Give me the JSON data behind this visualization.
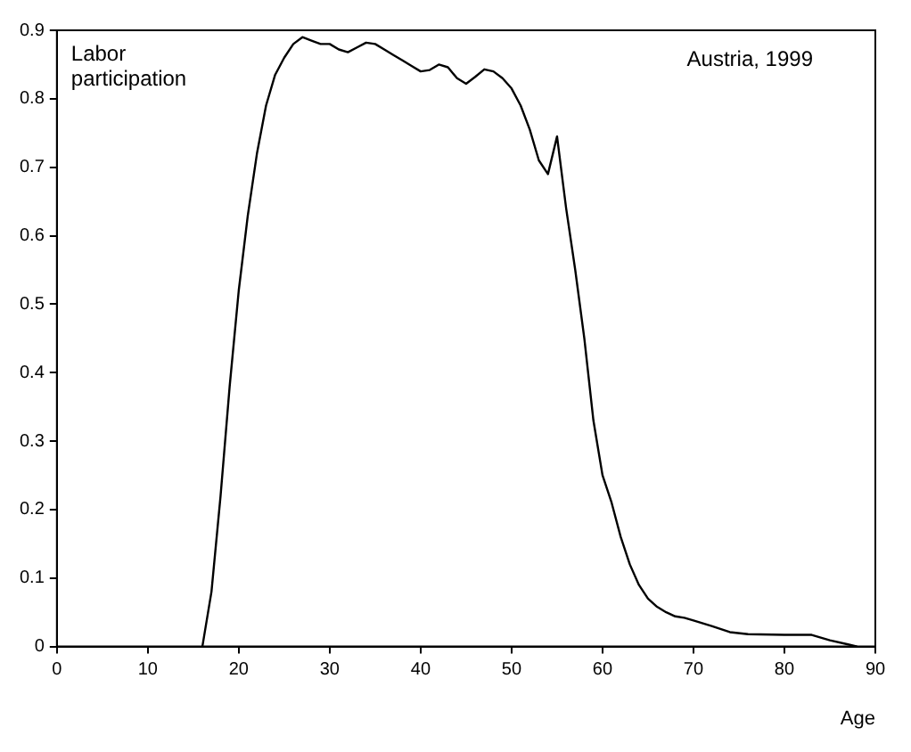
{
  "chart_data": {
    "type": "line",
    "xlabel": "Age",
    "annotations": [
      "Labor participation",
      "Austria, 1999"
    ],
    "x": [
      16,
      17,
      18,
      19,
      20,
      21,
      22,
      23,
      24,
      25,
      26,
      27,
      28,
      29,
      30,
      31,
      32,
      33,
      34,
      35,
      36,
      37,
      38,
      39,
      40,
      41,
      42,
      43,
      44,
      45,
      46,
      47,
      48,
      49,
      50,
      51,
      52,
      53,
      54,
      55,
      56,
      57,
      58,
      59,
      60,
      61,
      62,
      63,
      64,
      65,
      66,
      67,
      68,
      69,
      70,
      72,
      74,
      76,
      80,
      83,
      85,
      87,
      88
    ],
    "series": [
      {
        "color": "#000000",
        "values": [
          0,
          0.08,
          0.22,
          0.38,
          0.52,
          0.63,
          0.72,
          0.79,
          0.835,
          0.86,
          0.88,
          0.89,
          0.885,
          0.88,
          0.88,
          0.872,
          0.868,
          0.875,
          0.882,
          0.88,
          0.872,
          0.864,
          0.856,
          0.848,
          0.84,
          0.842,
          0.85,
          0.846,
          0.83,
          0.822,
          0.832,
          0.843,
          0.84,
          0.83,
          0.815,
          0.79,
          0.755,
          0.71,
          0.69,
          0.745,
          0.64,
          0.55,
          0.45,
          0.33,
          0.25,
          0.21,
          0.16,
          0.12,
          0.09,
          0.07,
          0.058,
          0.05,
          0.044,
          0.042,
          0.038,
          0.03,
          0.021,
          0.018,
          0.017,
          0.017,
          0.009,
          0.003,
          0
        ]
      }
    ],
    "xlim": [
      0,
      90
    ],
    "xticks": [
      0,
      10,
      20,
      30,
      40,
      50,
      60,
      70,
      80,
      90
    ],
    "ylim": [
      0,
      0.9
    ],
    "yticks": [
      0,
      0.1,
      0.2,
      0.3,
      0.4,
      0.5,
      0.6,
      0.7,
      0.8,
      0.9
    ],
    "grid": false,
    "legend": false,
    "marker": "none",
    "line_style": "solid"
  }
}
